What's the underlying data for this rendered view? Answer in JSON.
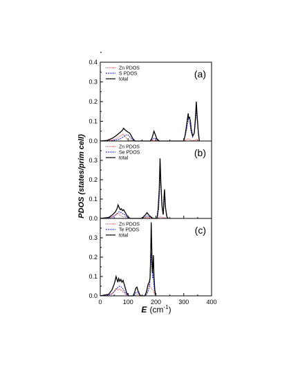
{
  "chart_data": {
    "type": "line",
    "ylabel": "PDOS (states/prim cell)",
    "xlabel_symbol": "E",
    "xlabel_unit": "(cm",
    "xlabel_exp": "-1",
    "xlabel_close": ")",
    "xlim": [
      0,
      400
    ],
    "xticks": [
      0,
      100,
      200,
      300,
      400
    ],
    "panels": [
      {
        "label": "(a)",
        "ylim": [
          0,
          0.4
        ],
        "yticks": [
          "0.0",
          "0.1",
          "0.2",
          "0.3",
          "0.4"
        ],
        "legend": [
          "Zn PDOS",
          "S PDOS",
          "total"
        ],
        "zn": [
          [
            0,
            0
          ],
          [
            30,
            0.002
          ],
          [
            50,
            0.008
          ],
          [
            65,
            0.018
          ],
          [
            75,
            0.028
          ],
          [
            82,
            0.035
          ],
          [
            88,
            0.025
          ],
          [
            95,
            0.012
          ],
          [
            100,
            0.006
          ],
          [
            110,
            0.004
          ],
          [
            118,
            0.002
          ],
          [
            125,
            0
          ],
          [
            180,
            0
          ],
          [
            190,
            0.003
          ],
          [
            195,
            0.004
          ],
          [
            200,
            0.002
          ],
          [
            210,
            0
          ],
          [
            300,
            0
          ],
          [
            308,
            0.004
          ],
          [
            314,
            0.012
          ],
          [
            318,
            0.01
          ],
          [
            322,
            0.006
          ],
          [
            330,
            0.002
          ],
          [
            340,
            0.004
          ],
          [
            346,
            0.008
          ],
          [
            350,
            0.004
          ],
          [
            356,
            0
          ]
        ],
        "s": [
          [
            0,
            0
          ],
          [
            30,
            0.001
          ],
          [
            50,
            0.004
          ],
          [
            65,
            0.008
          ],
          [
            75,
            0.014
          ],
          [
            82,
            0.02
          ],
          [
            90,
            0.028
          ],
          [
            95,
            0.032
          ],
          [
            100,
            0.03
          ],
          [
            105,
            0.022
          ],
          [
            110,
            0.015
          ],
          [
            118,
            0.005
          ],
          [
            125,
            0
          ],
          [
            180,
            0
          ],
          [
            188,
            0.008
          ],
          [
            195,
            0.015
          ],
          [
            200,
            0.01
          ],
          [
            210,
            0
          ],
          [
            300,
            0
          ],
          [
            306,
            0.03
          ],
          [
            312,
            0.07
          ],
          [
            316,
            0.12
          ],
          [
            318,
            0.1
          ],
          [
            322,
            0.09
          ],
          [
            326,
            0.05
          ],
          [
            332,
            0.02
          ],
          [
            338,
            0.04
          ],
          [
            343,
            0.11
          ],
          [
            346,
            0.17
          ],
          [
            348,
            0.12
          ],
          [
            352,
            0.05
          ],
          [
            356,
            0
          ]
        ],
        "total": [
          [
            0,
            0
          ],
          [
            25,
            0.003
          ],
          [
            45,
            0.015
          ],
          [
            60,
            0.03
          ],
          [
            72,
            0.045
          ],
          [
            80,
            0.055
          ],
          [
            84,
            0.065
          ],
          [
            88,
            0.058
          ],
          [
            95,
            0.05
          ],
          [
            100,
            0.045
          ],
          [
            106,
            0.04
          ],
          [
            112,
            0.025
          ],
          [
            118,
            0.01
          ],
          [
            125,
            0
          ],
          [
            180,
            0
          ],
          [
            186,
            0.015
          ],
          [
            193,
            0.05
          ],
          [
            197,
            0.035
          ],
          [
            203,
            0.012
          ],
          [
            212,
            0
          ],
          [
            300,
            0
          ],
          [
            305,
            0.03
          ],
          [
            310,
            0.08
          ],
          [
            314,
            0.12
          ],
          [
            316,
            0.14
          ],
          [
            318,
            0.115
          ],
          [
            321,
            0.12
          ],
          [
            324,
            0.1
          ],
          [
            327,
            0.06
          ],
          [
            332,
            0.025
          ],
          [
            338,
            0.04
          ],
          [
            342,
            0.12
          ],
          [
            345,
            0.2
          ],
          [
            348,
            0.13
          ],
          [
            352,
            0.05
          ],
          [
            356,
            0
          ]
        ]
      },
      {
        "label": "(b)",
        "ylim": [
          0,
          0.4
        ],
        "yticks": [
          "0.0",
          "0.1",
          "0.2",
          "0.3"
        ],
        "legend": [
          "Zn PDOS",
          "Se PDOS",
          "total"
        ],
        "zn": [
          [
            0,
            0
          ],
          [
            30,
            0.003
          ],
          [
            45,
            0.01
          ],
          [
            55,
            0.018
          ],
          [
            62,
            0.026
          ],
          [
            68,
            0.022
          ],
          [
            74,
            0.014
          ],
          [
            80,
            0.01
          ],
          [
            88,
            0.008
          ],
          [
            95,
            0.004
          ],
          [
            105,
            0
          ],
          [
            150,
            0
          ],
          [
            160,
            0.003
          ],
          [
            170,
            0.006
          ],
          [
            178,
            0.004
          ],
          [
            188,
            0
          ],
          [
            205,
            0
          ],
          [
            212,
            0.006
          ],
          [
            216,
            0.01
          ],
          [
            220,
            0.006
          ],
          [
            226,
            0.003
          ],
          [
            231,
            0.005
          ],
          [
            236,
            0.002
          ],
          [
            242,
            0
          ]
        ],
        "s": [
          [
            0,
            0
          ],
          [
            30,
            0.002
          ],
          [
            45,
            0.008
          ],
          [
            55,
            0.018
          ],
          [
            62,
            0.028
          ],
          [
            68,
            0.035
          ],
          [
            74,
            0.03
          ],
          [
            80,
            0.025
          ],
          [
            86,
            0.022
          ],
          [
            92,
            0.012
          ],
          [
            100,
            0.004
          ],
          [
            108,
            0
          ],
          [
            150,
            0
          ],
          [
            158,
            0.006
          ],
          [
            166,
            0.012
          ],
          [
            174,
            0.01
          ],
          [
            182,
            0.005
          ],
          [
            190,
            0
          ],
          [
            205,
            0
          ],
          [
            210,
            0.05
          ],
          [
            213,
            0.14
          ],
          [
            216,
            0.24
          ],
          [
            219,
            0.14
          ],
          [
            223,
            0.05
          ],
          [
            227,
            0.02
          ],
          [
            230,
            0.1
          ],
          [
            232,
            0.12
          ],
          [
            235,
            0.05
          ],
          [
            240,
            0.01
          ],
          [
            244,
            0
          ]
        ],
        "total": [
          [
            0,
            0
          ],
          [
            30,
            0.005
          ],
          [
            45,
            0.02
          ],
          [
            55,
            0.035
          ],
          [
            60,
            0.05
          ],
          [
            64,
            0.07
          ],
          [
            68,
            0.055
          ],
          [
            72,
            0.045
          ],
          [
            76,
            0.05
          ],
          [
            80,
            0.04
          ],
          [
            84,
            0.045
          ],
          [
            90,
            0.03
          ],
          [
            96,
            0.015
          ],
          [
            102,
            0.005
          ],
          [
            108,
            0
          ],
          [
            150,
            0
          ],
          [
            156,
            0.01
          ],
          [
            163,
            0.02
          ],
          [
            168,
            0.03
          ],
          [
            173,
            0.02
          ],
          [
            180,
            0.01
          ],
          [
            190,
            0
          ],
          [
            204,
            0
          ],
          [
            208,
            0.05
          ],
          [
            212,
            0.15
          ],
          [
            215,
            0.31
          ],
          [
            218,
            0.18
          ],
          [
            222,
            0.06
          ],
          [
            226,
            0.02
          ],
          [
            229,
            0.11
          ],
          [
            231,
            0.15
          ],
          [
            234,
            0.06
          ],
          [
            239,
            0.01
          ],
          [
            244,
            0
          ]
        ]
      },
      {
        "label": "(c)",
        "ylim": [
          0,
          0.4
        ],
        "yticks": [
          "0.0",
          "0.1",
          "0.2",
          "0.3"
        ],
        "legend": [
          "Zn PDOS",
          "Te PDOS",
          "total"
        ],
        "zn": [
          [
            0,
            0
          ],
          [
            30,
            0.004
          ],
          [
            45,
            0.015
          ],
          [
            52,
            0.03
          ],
          [
            58,
            0.04
          ],
          [
            64,
            0.03
          ],
          [
            70,
            0.035
          ],
          [
            76,
            0.028
          ],
          [
            82,
            0.02
          ],
          [
            88,
            0.012
          ],
          [
            95,
            0.004
          ],
          [
            102,
            0
          ],
          [
            120,
            0
          ],
          [
            128,
            0.006
          ],
          [
            133,
            0.01
          ],
          [
            138,
            0.006
          ],
          [
            146,
            0
          ],
          [
            160,
            0
          ],
          [
            168,
            0.02
          ],
          [
            172,
            0.055
          ],
          [
            175,
            0.06
          ],
          [
            178,
            0.05
          ],
          [
            182,
            0.04
          ],
          [
            186,
            0.035
          ],
          [
            190,
            0.028
          ],
          [
            194,
            0.01
          ],
          [
            200,
            0
          ]
        ],
        "s": [
          [
            0,
            0
          ],
          [
            30,
            0.003
          ],
          [
            45,
            0.012
          ],
          [
            52,
            0.025
          ],
          [
            58,
            0.035
          ],
          [
            64,
            0.045
          ],
          [
            70,
            0.05
          ],
          [
            76,
            0.045
          ],
          [
            82,
            0.035
          ],
          [
            88,
            0.02
          ],
          [
            95,
            0.006
          ],
          [
            102,
            0
          ],
          [
            120,
            0
          ],
          [
            127,
            0.015
          ],
          [
            132,
            0.02
          ],
          [
            137,
            0.015
          ],
          [
            145,
            0
          ],
          [
            160,
            0
          ],
          [
            168,
            0.01
          ],
          [
            174,
            0.03
          ],
          [
            178,
            0.06
          ],
          [
            181,
            0.18
          ],
          [
            183,
            0.22
          ],
          [
            185,
            0.15
          ],
          [
            188,
            0.09
          ],
          [
            190,
            0.13
          ],
          [
            192,
            0.06
          ],
          [
            196,
            0.015
          ],
          [
            200,
            0
          ]
        ],
        "total": [
          [
            0,
            0
          ],
          [
            30,
            0.008
          ],
          [
            42,
            0.03
          ],
          [
            50,
            0.06
          ],
          [
            54,
            0.08
          ],
          [
            57,
            0.1
          ],
          [
            60,
            0.085
          ],
          [
            63,
            0.07
          ],
          [
            66,
            0.09
          ],
          [
            70,
            0.075
          ],
          [
            74,
            0.085
          ],
          [
            78,
            0.07
          ],
          [
            82,
            0.08
          ],
          [
            86,
            0.06
          ],
          [
            90,
            0.04
          ],
          [
            95,
            0.015
          ],
          [
            102,
            0
          ],
          [
            118,
            0
          ],
          [
            124,
            0.02
          ],
          [
            128,
            0.04
          ],
          [
            132,
            0.045
          ],
          [
            136,
            0.025
          ],
          [
            144,
            0
          ],
          [
            160,
            0
          ],
          [
            166,
            0.02
          ],
          [
            172,
            0.06
          ],
          [
            176,
            0.07
          ],
          [
            179,
            0.09
          ],
          [
            181,
            0.2
          ],
          [
            183,
            0.38
          ],
          [
            185,
            0.25
          ],
          [
            187,
            0.12
          ],
          [
            189,
            0.15
          ],
          [
            191,
            0.21
          ],
          [
            193,
            0.1
          ],
          [
            196,
            0.03
          ],
          [
            200,
            0
          ]
        ]
      }
    ]
  },
  "colors": {
    "zn": "#e03030",
    "s": "#3030c8",
    "total": "#000000"
  }
}
